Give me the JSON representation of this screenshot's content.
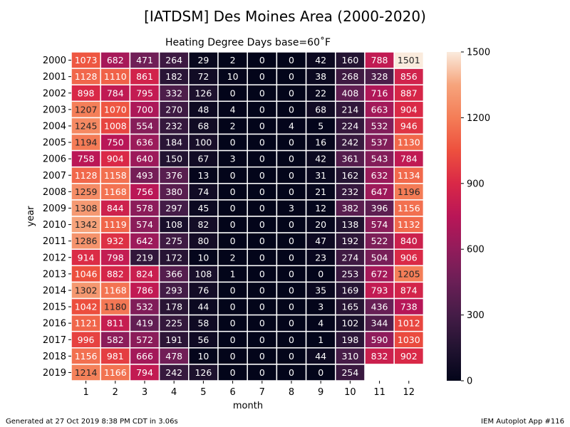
{
  "title": "[IATDSM] Des Moines Area (2000-2020)",
  "subtitle": "Heating Degree Days base=60˚F",
  "footer_left": "Generated at 27 Oct 2019 8:38 PM CDT in 3.06s",
  "footer_right": "IEM Autoplot App #116",
  "chart_data": {
    "type": "heatmap",
    "xlabel": "month",
    "ylabel": "year",
    "x": [
      "1",
      "2",
      "3",
      "4",
      "5",
      "6",
      "7",
      "8",
      "9",
      "10",
      "11",
      "12"
    ],
    "y": [
      "2000",
      "2001",
      "2002",
      "2003",
      "2004",
      "2005",
      "2006",
      "2007",
      "2008",
      "2009",
      "2010",
      "2011",
      "2012",
      "2013",
      "2014",
      "2015",
      "2016",
      "2017",
      "2018",
      "2019"
    ],
    "values": [
      [
        1073,
        682,
        471,
        264,
        29,
        2,
        0,
        0,
        42,
        160,
        788,
        1501
      ],
      [
        1128,
        1110,
        861,
        182,
        72,
        10,
        0,
        0,
        38,
        268,
        328,
        856
      ],
      [
        898,
        784,
        795,
        332,
        126,
        0,
        0,
        0,
        22,
        408,
        716,
        887
      ],
      [
        1207,
        1070,
        700,
        270,
        48,
        4,
        0,
        0,
        68,
        214,
        663,
        904
      ],
      [
        1245,
        1008,
        554,
        232,
        68,
        2,
        0,
        4,
        5,
        224,
        532,
        946
      ],
      [
        1194,
        750,
        636,
        184,
        100,
        0,
        0,
        0,
        16,
        242,
        537,
        1130
      ],
      [
        758,
        904,
        640,
        150,
        67,
        3,
        0,
        0,
        42,
        361,
        543,
        784
      ],
      [
        1128,
        1158,
        493,
        376,
        13,
        0,
        0,
        0,
        31,
        162,
        632,
        1134
      ],
      [
        1259,
        1168,
        756,
        380,
        74,
        0,
        0,
        0,
        21,
        232,
        647,
        1196
      ],
      [
        1308,
        844,
        578,
        297,
        45,
        0,
        0,
        3,
        12,
        382,
        396,
        1156
      ],
      [
        1342,
        1119,
        574,
        108,
        82,
        0,
        0,
        0,
        20,
        138,
        574,
        1132
      ],
      [
        1286,
        932,
        642,
        275,
        80,
        0,
        0,
        0,
        47,
        192,
        522,
        840
      ],
      [
        914,
        798,
        219,
        172,
        10,
        2,
        0,
        0,
        23,
        274,
        504,
        906
      ],
      [
        1046,
        882,
        824,
        366,
        108,
        1,
        0,
        0,
        0,
        253,
        672,
        1205
      ],
      [
        1302,
        1168,
        786,
        293,
        76,
        0,
        0,
        0,
        35,
        169,
        793,
        874
      ],
      [
        1042,
        1180,
        532,
        178,
        44,
        0,
        0,
        0,
        3,
        165,
        436,
        738
      ],
      [
        1121,
        811,
        419,
        225,
        58,
        0,
        0,
        0,
        4,
        102,
        344,
        1012
      ],
      [
        996,
        582,
        572,
        191,
        56,
        0,
        0,
        0,
        1,
        198,
        590,
        1030
      ],
      [
        1156,
        981,
        666,
        478,
        10,
        0,
        0,
        0,
        44,
        310,
        832,
        902
      ],
      [
        1214,
        1166,
        794,
        242,
        126,
        0,
        0,
        0,
        0,
        254,
        null,
        null
      ]
    ],
    "colorbar": {
      "min": 0,
      "max": 1500,
      "ticks": [
        "0",
        "300",
        "600",
        "900",
        "1200",
        "1500"
      ],
      "colormap": "rocket"
    }
  }
}
